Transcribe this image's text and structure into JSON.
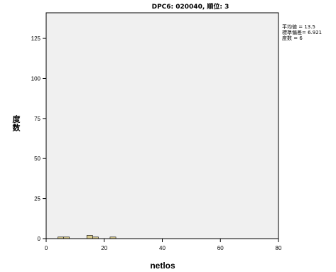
{
  "chart_data": {
    "type": "bar",
    "subtype": "histogram",
    "title": "DPC6: 020040, 順位: 3",
    "xlabel": "netlos",
    "ylabel": "度数",
    "xlim": [
      0,
      80
    ],
    "ylim": [
      0,
      141
    ],
    "xticks": [
      0,
      20,
      40,
      60,
      80
    ],
    "yticks": [
      0,
      25,
      50,
      75,
      100,
      125
    ],
    "bins": [
      {
        "x0": 4,
        "x1": 6,
        "count": 1
      },
      {
        "x0": 6,
        "x1": 8,
        "count": 1
      },
      {
        "x0": 14,
        "x1": 16,
        "count": 2
      },
      {
        "x0": 16,
        "x1": 18,
        "count": 1
      },
      {
        "x0": 22,
        "x1": 24,
        "count": 1
      }
    ],
    "stats": [
      "平均値 = 13.5",
      "標準偏差= 6.921",
      "度数 = 6"
    ],
    "grid": false,
    "legend": "top-right",
    "colors": {
      "bar_fill": "#d8ca8e",
      "bar_stroke": "#000000",
      "plot_bg": "#f0f0f0",
      "frame": "#000000"
    }
  }
}
